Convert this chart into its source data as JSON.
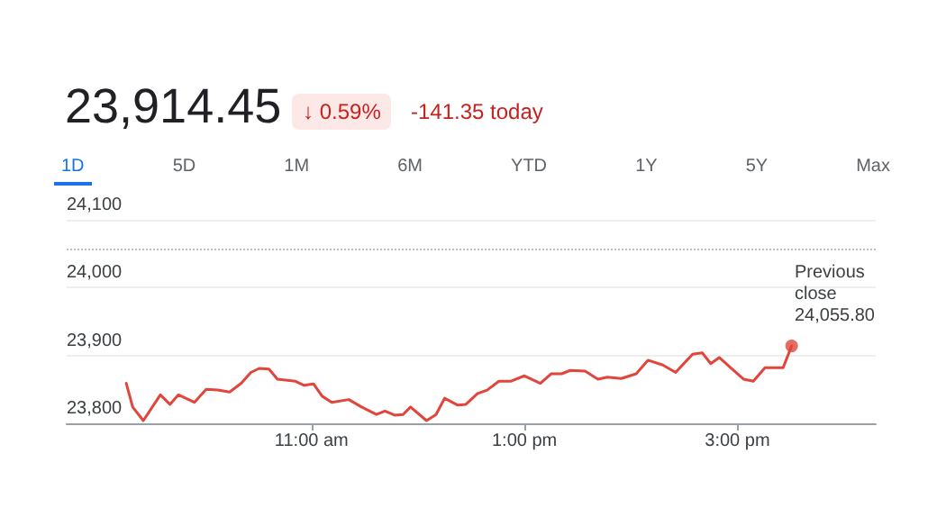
{
  "chart_data": {
    "type": "line",
    "title": "23,914.45",
    "annotations": [
      "↓ 0.59%",
      "-141.35 today",
      "1D",
      "5D",
      "1M",
      "6M",
      "YTD",
      "1Y",
      "5Y",
      "Max"
    ],
    "x": [
      9.26,
      9.32,
      9.42,
      9.58,
      9.67,
      9.75,
      9.9,
      10.01,
      10.12,
      10.23,
      10.34,
      10.43,
      10.51,
      10.6,
      10.68,
      10.85,
      10.93,
      11.02,
      11.1,
      11.19,
      11.35,
      11.47,
      11.61,
      11.69,
      11.78,
      11.86,
      11.93,
      12.08,
      12.17,
      12.25,
      12.37,
      12.45,
      12.56,
      12.65,
      12.76,
      12.87,
      13.0,
      13.15,
      13.25,
      13.35,
      13.43,
      13.57,
      13.69,
      13.78,
      13.91,
      14.05,
      14.16,
      14.3,
      14.42,
      14.58,
      14.67,
      14.75,
      14.83,
      14.95,
      15.06,
      15.15,
      15.26,
      15.43,
      15.51
    ],
    "series": [
      {
        "color": "#e0463c",
        "marker": "none",
        "values": [
          23859,
          23824,
          23804,
          23842,
          23828,
          23842,
          23831,
          23850,
          23849,
          23846,
          23859,
          23875,
          23881,
          23880,
          23865,
          23862,
          23856,
          23858,
          23840,
          23831,
          23835,
          23824,
          23813,
          23818,
          23812,
          23813,
          23824,
          23804,
          23813,
          23837,
          23827,
          23828,
          23844,
          23849,
          23862,
          23862,
          23870,
          23859,
          23873,
          23873,
          23878,
          23877,
          23865,
          23868,
          23866,
          23873,
          23893,
          23886,
          23875,
          23902,
          23904,
          23888,
          23897,
          23880,
          23865,
          23862,
          23882,
          23882,
          23914
        ]
      },
      {
        "type": "scatter",
        "color": "#e0463c",
        "marker": "circle",
        "x": [
          15.51
        ],
        "values": [
          23914
        ]
      }
    ],
    "xlim": [
      8.7,
      16.3
    ],
    "xticks": [
      {
        "value": 11,
        "label": "11:00 am"
      },
      {
        "value": 13,
        "label": "1:00 pm"
      },
      {
        "value": 15,
        "label": "3:00 pm"
      }
    ],
    "ylim": [
      23800,
      24100
    ],
    "yticks": [
      {
        "value": 23800,
        "label": "23,800"
      },
      {
        "value": 23900,
        "label": "23,900"
      },
      {
        "value": 24000,
        "label": "24,000"
      },
      {
        "value": 24100,
        "label": "24,100"
      }
    ],
    "ref_lines": [
      {
        "axis": "y",
        "value": 24055.8,
        "label": "Previous close 24,055.80",
        "color": "#bdbdbd",
        "line_style": "dotted"
      }
    ],
    "grid": "y"
  }
}
